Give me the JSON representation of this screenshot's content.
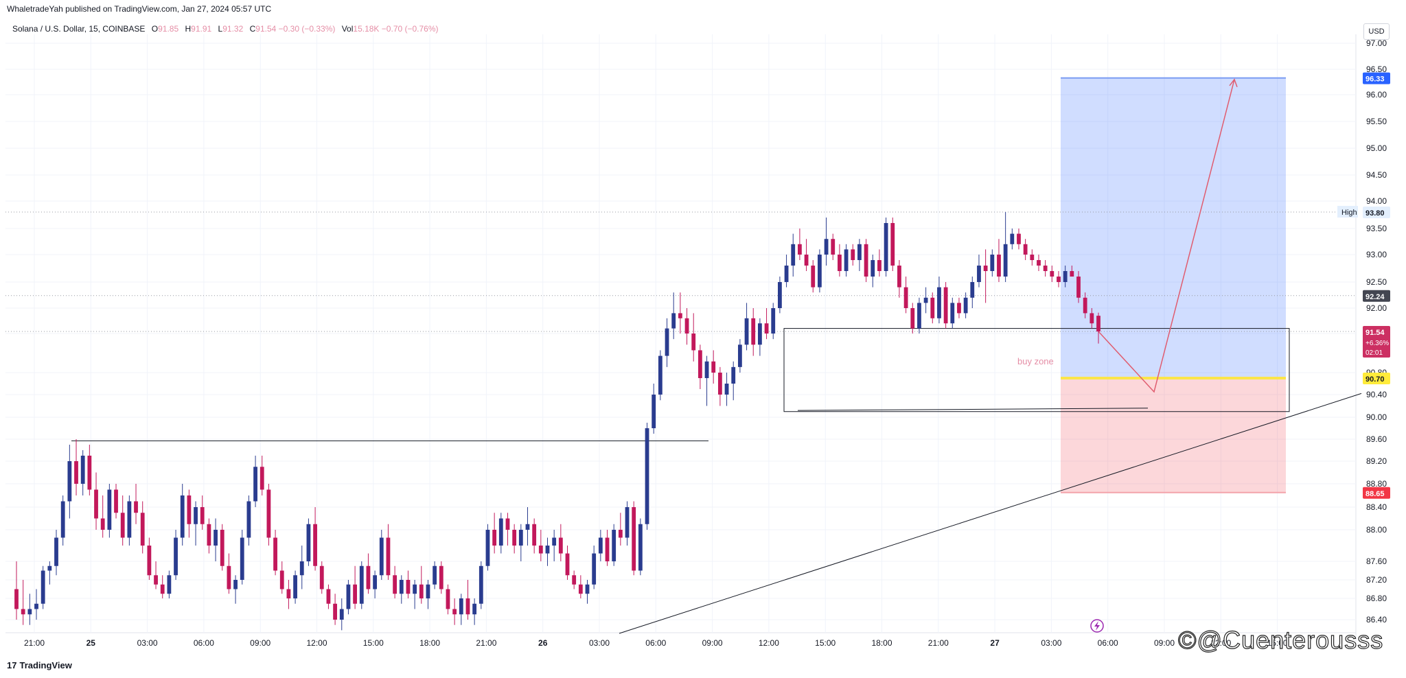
{
  "header": {
    "published": "WhaletradeYah published on TradingView.com, Jan 27, 2024 05:57 UTC"
  },
  "legend": {
    "symbol": "Solana / U.S. Dollar, 15, COINBASE",
    "o_label": "O",
    "o": "91.85",
    "h_label": "H",
    "h": "91.91",
    "l_label": "L",
    "l": "91.32",
    "c_label": "C",
    "c": "91.54",
    "change": "−0.30 (−0.33%)",
    "vol_label": "Vol",
    "vol": "15.18K",
    "vol_change": "−0.70 (−0.76%)"
  },
  "currency": "USD",
  "footer": {
    "brand": "TradingView",
    "logo_glyph": "17"
  },
  "watermark": "©@Cuenterousss",
  "chart_data": {
    "type": "candlestick",
    "symbol": "Solana / U.S. Dollar",
    "interval": "15",
    "exchange": "COINBASE",
    "y_range": [
      86.2,
      97.1
    ],
    "y_ticks": [
      "97.00",
      "96.50",
      "96.00",
      "95.50",
      "95.00",
      "94.50",
      "94.00",
      "93.50",
      "93.00",
      "92.50",
      "92.00",
      "91.50",
      "90.80",
      "90.40",
      "90.00",
      "89.60",
      "89.20",
      "88.80",
      "88.40",
      "88.00",
      "87.60",
      "87.20",
      "86.80",
      "86.40"
    ],
    "x_labels": [
      "21:00",
      "25",
      "03:00",
      "06:00",
      "09:00",
      "12:00",
      "15:00",
      "18:00",
      "21:00",
      "26",
      "03:00",
      "06:00",
      "09:00",
      "12:00",
      "15:00",
      "18:00",
      "21:00",
      "27",
      "03:00",
      "06:00",
      "09:00",
      "12:00",
      "15:00"
    ],
    "price_badges": [
      {
        "value": "96.33",
        "color": "#2962ff",
        "text_color": "#ffffff"
      },
      {
        "value": "93.80",
        "label": "High",
        "color": "#e3effd",
        "text_color": "#131722"
      },
      {
        "value": "92.24",
        "color": "#434651",
        "text_color": "#ffffff"
      },
      {
        "value": "91.54",
        "change": "+6.36%",
        "countdown": "02:01",
        "color": "#cc2f62",
        "text_color": "#ffffff"
      },
      {
        "value": "90.70",
        "color": "#ffeb3b",
        "text_color": "#131722"
      },
      {
        "value": "88.65",
        "color": "#f23645",
        "text_color": "#ffffff"
      }
    ],
    "position_tool": {
      "entry": 90.7,
      "target": 96.33,
      "stop": 88.65
    },
    "annotations": [
      "buy zone"
    ],
    "up_color": "#2a3c8f",
    "down_color": "#c2185b",
    "candles": [
      [
        87.0,
        87.6,
        86.4,
        86.6
      ],
      [
        86.6,
        87.2,
        86.3,
        86.5
      ],
      [
        86.5,
        86.9,
        86.3,
        86.6
      ],
      [
        86.6,
        87.0,
        86.4,
        86.7
      ],
      [
        86.7,
        87.5,
        86.6,
        87.4
      ],
      [
        87.4,
        87.6,
        87.1,
        87.5
      ],
      [
        87.5,
        88.0,
        87.3,
        87.9
      ],
      [
        87.9,
        88.6,
        87.8,
        88.5
      ],
      [
        88.5,
        89.5,
        88.2,
        89.2
      ],
      [
        89.2,
        89.6,
        88.6,
        88.8
      ],
      [
        88.8,
        89.4,
        88.6,
        89.3
      ],
      [
        89.3,
        89.5,
        88.6,
        88.7
      ],
      [
        88.7,
        89.0,
        88.0,
        88.2
      ],
      [
        88.2,
        88.6,
        87.9,
        88.0
      ],
      [
        88.0,
        88.8,
        87.9,
        88.7
      ],
      [
        88.7,
        88.8,
        88.2,
        88.3
      ],
      [
        88.3,
        88.6,
        87.8,
        87.9
      ],
      [
        87.9,
        88.6,
        87.8,
        88.5
      ],
      [
        88.5,
        88.8,
        88.1,
        88.3
      ],
      [
        88.3,
        88.5,
        87.7,
        87.8
      ],
      [
        87.8,
        87.9,
        87.2,
        87.3
      ],
      [
        87.3,
        87.6,
        87.0,
        87.1
      ],
      [
        87.1,
        87.3,
        86.8,
        86.9
      ],
      [
        86.9,
        87.4,
        86.8,
        87.3
      ],
      [
        87.3,
        88.0,
        87.2,
        87.9
      ],
      [
        87.9,
        88.8,
        87.8,
        88.6
      ],
      [
        88.6,
        88.7,
        87.9,
        88.1
      ],
      [
        88.1,
        88.5,
        87.8,
        88.4
      ],
      [
        88.4,
        88.6,
        88.0,
        88.1
      ],
      [
        88.1,
        88.2,
        87.7,
        87.8
      ],
      [
        87.8,
        88.2,
        87.6,
        88.0
      ],
      [
        88.0,
        88.1,
        87.4,
        87.5
      ],
      [
        87.5,
        87.7,
        86.9,
        87.0
      ],
      [
        87.0,
        87.3,
        86.7,
        87.2
      ],
      [
        87.2,
        88.0,
        87.1,
        87.9
      ],
      [
        87.9,
        88.6,
        87.8,
        88.5
      ],
      [
        88.5,
        89.3,
        88.4,
        89.1
      ],
      [
        89.1,
        89.3,
        88.6,
        88.7
      ],
      [
        88.7,
        88.8,
        87.8,
        87.9
      ],
      [
        87.9,
        88.0,
        87.3,
        87.4
      ],
      [
        87.4,
        87.6,
        86.9,
        87.0
      ],
      [
        87.0,
        87.2,
        86.6,
        86.8
      ],
      [
        86.8,
        87.4,
        86.7,
        87.3
      ],
      [
        87.3,
        87.8,
        87.0,
        87.6
      ],
      [
        87.6,
        88.2,
        87.5,
        88.1
      ],
      [
        88.1,
        88.4,
        87.4,
        87.5
      ],
      [
        87.5,
        87.6,
        86.9,
        87.0
      ],
      [
        87.0,
        87.1,
        86.6,
        86.7
      ],
      [
        86.7,
        86.9,
        86.3,
        86.4
      ],
      [
        86.4,
        86.8,
        86.2,
        86.6
      ],
      [
        86.6,
        87.2,
        86.5,
        87.1
      ],
      [
        87.1,
        87.5,
        86.6,
        86.7
      ],
      [
        86.7,
        87.6,
        86.6,
        87.5
      ],
      [
        87.5,
        87.7,
        86.9,
        87.0
      ],
      [
        87.0,
        87.4,
        86.8,
        87.3
      ],
      [
        87.3,
        88.0,
        87.2,
        87.9
      ],
      [
        87.9,
        88.1,
        87.2,
        87.3
      ],
      [
        87.3,
        87.5,
        86.8,
        86.9
      ],
      [
        86.9,
        87.3,
        86.7,
        87.2
      ],
      [
        87.2,
        87.4,
        86.8,
        86.9
      ],
      [
        86.9,
        87.2,
        86.6,
        87.1
      ],
      [
        87.1,
        87.5,
        86.7,
        86.8
      ],
      [
        86.8,
        87.2,
        86.6,
        87.1
      ],
      [
        87.1,
        87.6,
        87.0,
        87.5
      ],
      [
        87.5,
        87.6,
        86.9,
        87.0
      ],
      [
        87.0,
        87.1,
        86.5,
        86.6
      ],
      [
        86.6,
        86.8,
        86.3,
        86.5
      ],
      [
        86.5,
        86.9,
        86.3,
        86.8
      ],
      [
        86.8,
        87.2,
        86.4,
        86.5
      ],
      [
        86.5,
        86.8,
        86.3,
        86.7
      ],
      [
        86.7,
        87.6,
        86.6,
        87.5
      ],
      [
        87.5,
        88.1,
        87.4,
        88.0
      ],
      [
        88.0,
        88.3,
        87.7,
        87.8
      ],
      [
        87.8,
        88.3,
        87.7,
        88.2
      ],
      [
        88.2,
        88.3,
        87.8,
        88.0
      ],
      [
        88.0,
        88.1,
        87.7,
        87.8
      ],
      [
        87.8,
        88.1,
        87.6,
        88.0
      ],
      [
        88.0,
        88.4,
        87.8,
        88.1
      ],
      [
        88.1,
        88.2,
        87.7,
        87.8
      ],
      [
        87.8,
        88.0,
        87.6,
        87.7
      ],
      [
        87.7,
        87.9,
        87.5,
        87.8
      ],
      [
        87.8,
        88.0,
        87.6,
        87.9
      ],
      [
        87.9,
        88.1,
        87.6,
        87.7
      ],
      [
        87.7,
        87.8,
        87.2,
        87.3
      ],
      [
        87.3,
        87.4,
        87.0,
        87.1
      ],
      [
        87.1,
        87.3,
        86.8,
        86.9
      ],
      [
        86.9,
        87.2,
        86.7,
        87.1
      ],
      [
        87.1,
        87.8,
        87.0,
        87.7
      ],
      [
        87.7,
        88.0,
        87.6,
        87.9
      ],
      [
        87.9,
        88.0,
        87.5,
        87.6
      ],
      [
        87.6,
        88.1,
        87.5,
        88.0
      ],
      [
        88.0,
        88.3,
        87.8,
        87.9
      ],
      [
        87.9,
        88.5,
        87.8,
        88.4
      ],
      [
        88.4,
        88.5,
        87.3,
        87.4
      ],
      [
        87.4,
        88.2,
        87.3,
        88.1
      ],
      [
        88.1,
        89.9,
        88.0,
        89.8
      ],
      [
        89.8,
        90.6,
        89.7,
        90.4
      ],
      [
        90.4,
        91.2,
        90.3,
        91.1
      ],
      [
        91.1,
        91.8,
        90.9,
        91.6
      ],
      [
        91.6,
        92.3,
        91.4,
        91.9
      ],
      [
        91.9,
        92.3,
        91.5,
        91.8
      ],
      [
        91.8,
        92.0,
        91.3,
        91.5
      ],
      [
        91.5,
        91.9,
        91.0,
        91.2
      ],
      [
        91.2,
        91.3,
        90.5,
        90.7
      ],
      [
        90.7,
        91.1,
        90.2,
        91.0
      ],
      [
        91.0,
        91.2,
        90.6,
        90.8
      ],
      [
        90.8,
        90.9,
        90.2,
        90.4
      ],
      [
        90.4,
        90.8,
        90.2,
        90.6
      ],
      [
        90.6,
        91.0,
        90.3,
        90.9
      ],
      [
        90.9,
        91.4,
        90.8,
        91.3
      ],
      [
        91.3,
        92.1,
        91.2,
        91.8
      ],
      [
        91.8,
        92.0,
        91.1,
        91.3
      ],
      [
        91.3,
        91.8,
        91.1,
        91.7
      ],
      [
        91.7,
        92.0,
        91.4,
        91.5
      ],
      [
        91.5,
        92.1,
        91.4,
        92.0
      ],
      [
        92.0,
        92.6,
        91.9,
        92.5
      ],
      [
        92.5,
        93.0,
        92.4,
        92.8
      ],
      [
        92.8,
        93.4,
        92.6,
        93.2
      ],
      [
        93.2,
        93.5,
        92.9,
        93.0
      ],
      [
        93.0,
        93.3,
        92.7,
        92.8
      ],
      [
        92.8,
        92.9,
        92.3,
        92.4
      ],
      [
        92.4,
        93.1,
        92.3,
        93.0
      ],
      [
        93.0,
        93.7,
        92.8,
        93.3
      ],
      [
        93.3,
        93.4,
        92.9,
        93.0
      ],
      [
        93.0,
        93.2,
        92.6,
        92.7
      ],
      [
        92.7,
        93.2,
        92.6,
        93.1
      ],
      [
        93.1,
        93.2,
        92.8,
        92.9
      ],
      [
        92.9,
        93.3,
        92.7,
        93.2
      ],
      [
        93.2,
        93.3,
        92.5,
        92.6
      ],
      [
        92.6,
        93.0,
        92.4,
        92.9
      ],
      [
        92.9,
        93.1,
        92.6,
        92.7
      ],
      [
        92.7,
        93.7,
        92.6,
        93.6
      ],
      [
        93.6,
        93.7,
        92.7,
        92.8
      ],
      [
        92.8,
        92.9,
        92.2,
        92.4
      ],
      [
        92.4,
        92.6,
        91.9,
        92.0
      ],
      [
        92.0,
        92.1,
        91.5,
        91.6
      ],
      [
        91.6,
        92.2,
        91.5,
        92.1
      ],
      [
        92.1,
        92.4,
        91.9,
        92.2
      ],
      [
        92.2,
        92.3,
        91.7,
        91.8
      ],
      [
        91.8,
        92.6,
        91.7,
        92.4
      ],
      [
        92.4,
        92.5,
        91.6,
        91.7
      ],
      [
        91.7,
        92.2,
        91.6,
        92.1
      ],
      [
        92.1,
        92.2,
        91.8,
        91.9
      ],
      [
        91.9,
        92.3,
        91.8,
        92.2
      ],
      [
        92.2,
        92.6,
        92.0,
        92.5
      ],
      [
        92.5,
        93.0,
        92.4,
        92.8
      ],
      [
        92.8,
        93.1,
        92.1,
        92.7
      ],
      [
        92.7,
        93.1,
        92.6,
        93.0
      ],
      [
        93.0,
        93.3,
        92.5,
        92.6
      ],
      [
        92.6,
        93.8,
        92.5,
        93.2
      ],
      [
        93.2,
        93.5,
        93.1,
        93.4
      ],
      [
        93.4,
        93.5,
        93.1,
        93.2
      ],
      [
        93.2,
        93.3,
        92.9,
        93.0
      ],
      [
        93.0,
        93.1,
        92.8,
        92.9
      ],
      [
        92.9,
        93.0,
        92.7,
        92.8
      ],
      [
        92.8,
        92.9,
        92.6,
        92.7
      ],
      [
        92.7,
        92.8,
        92.5,
        92.6
      ],
      [
        92.6,
        92.7,
        92.4,
        92.5
      ],
      [
        92.5,
        92.8,
        92.4,
        92.7
      ],
      [
        92.7,
        92.8,
        92.6,
        92.6
      ],
      [
        92.6,
        92.7,
        92.1,
        92.2
      ],
      [
        92.2,
        92.3,
        91.8,
        91.9
      ],
      [
        91.9,
        92.0,
        91.6,
        91.7
      ],
      [
        91.85,
        91.91,
        91.32,
        91.54
      ]
    ]
  }
}
